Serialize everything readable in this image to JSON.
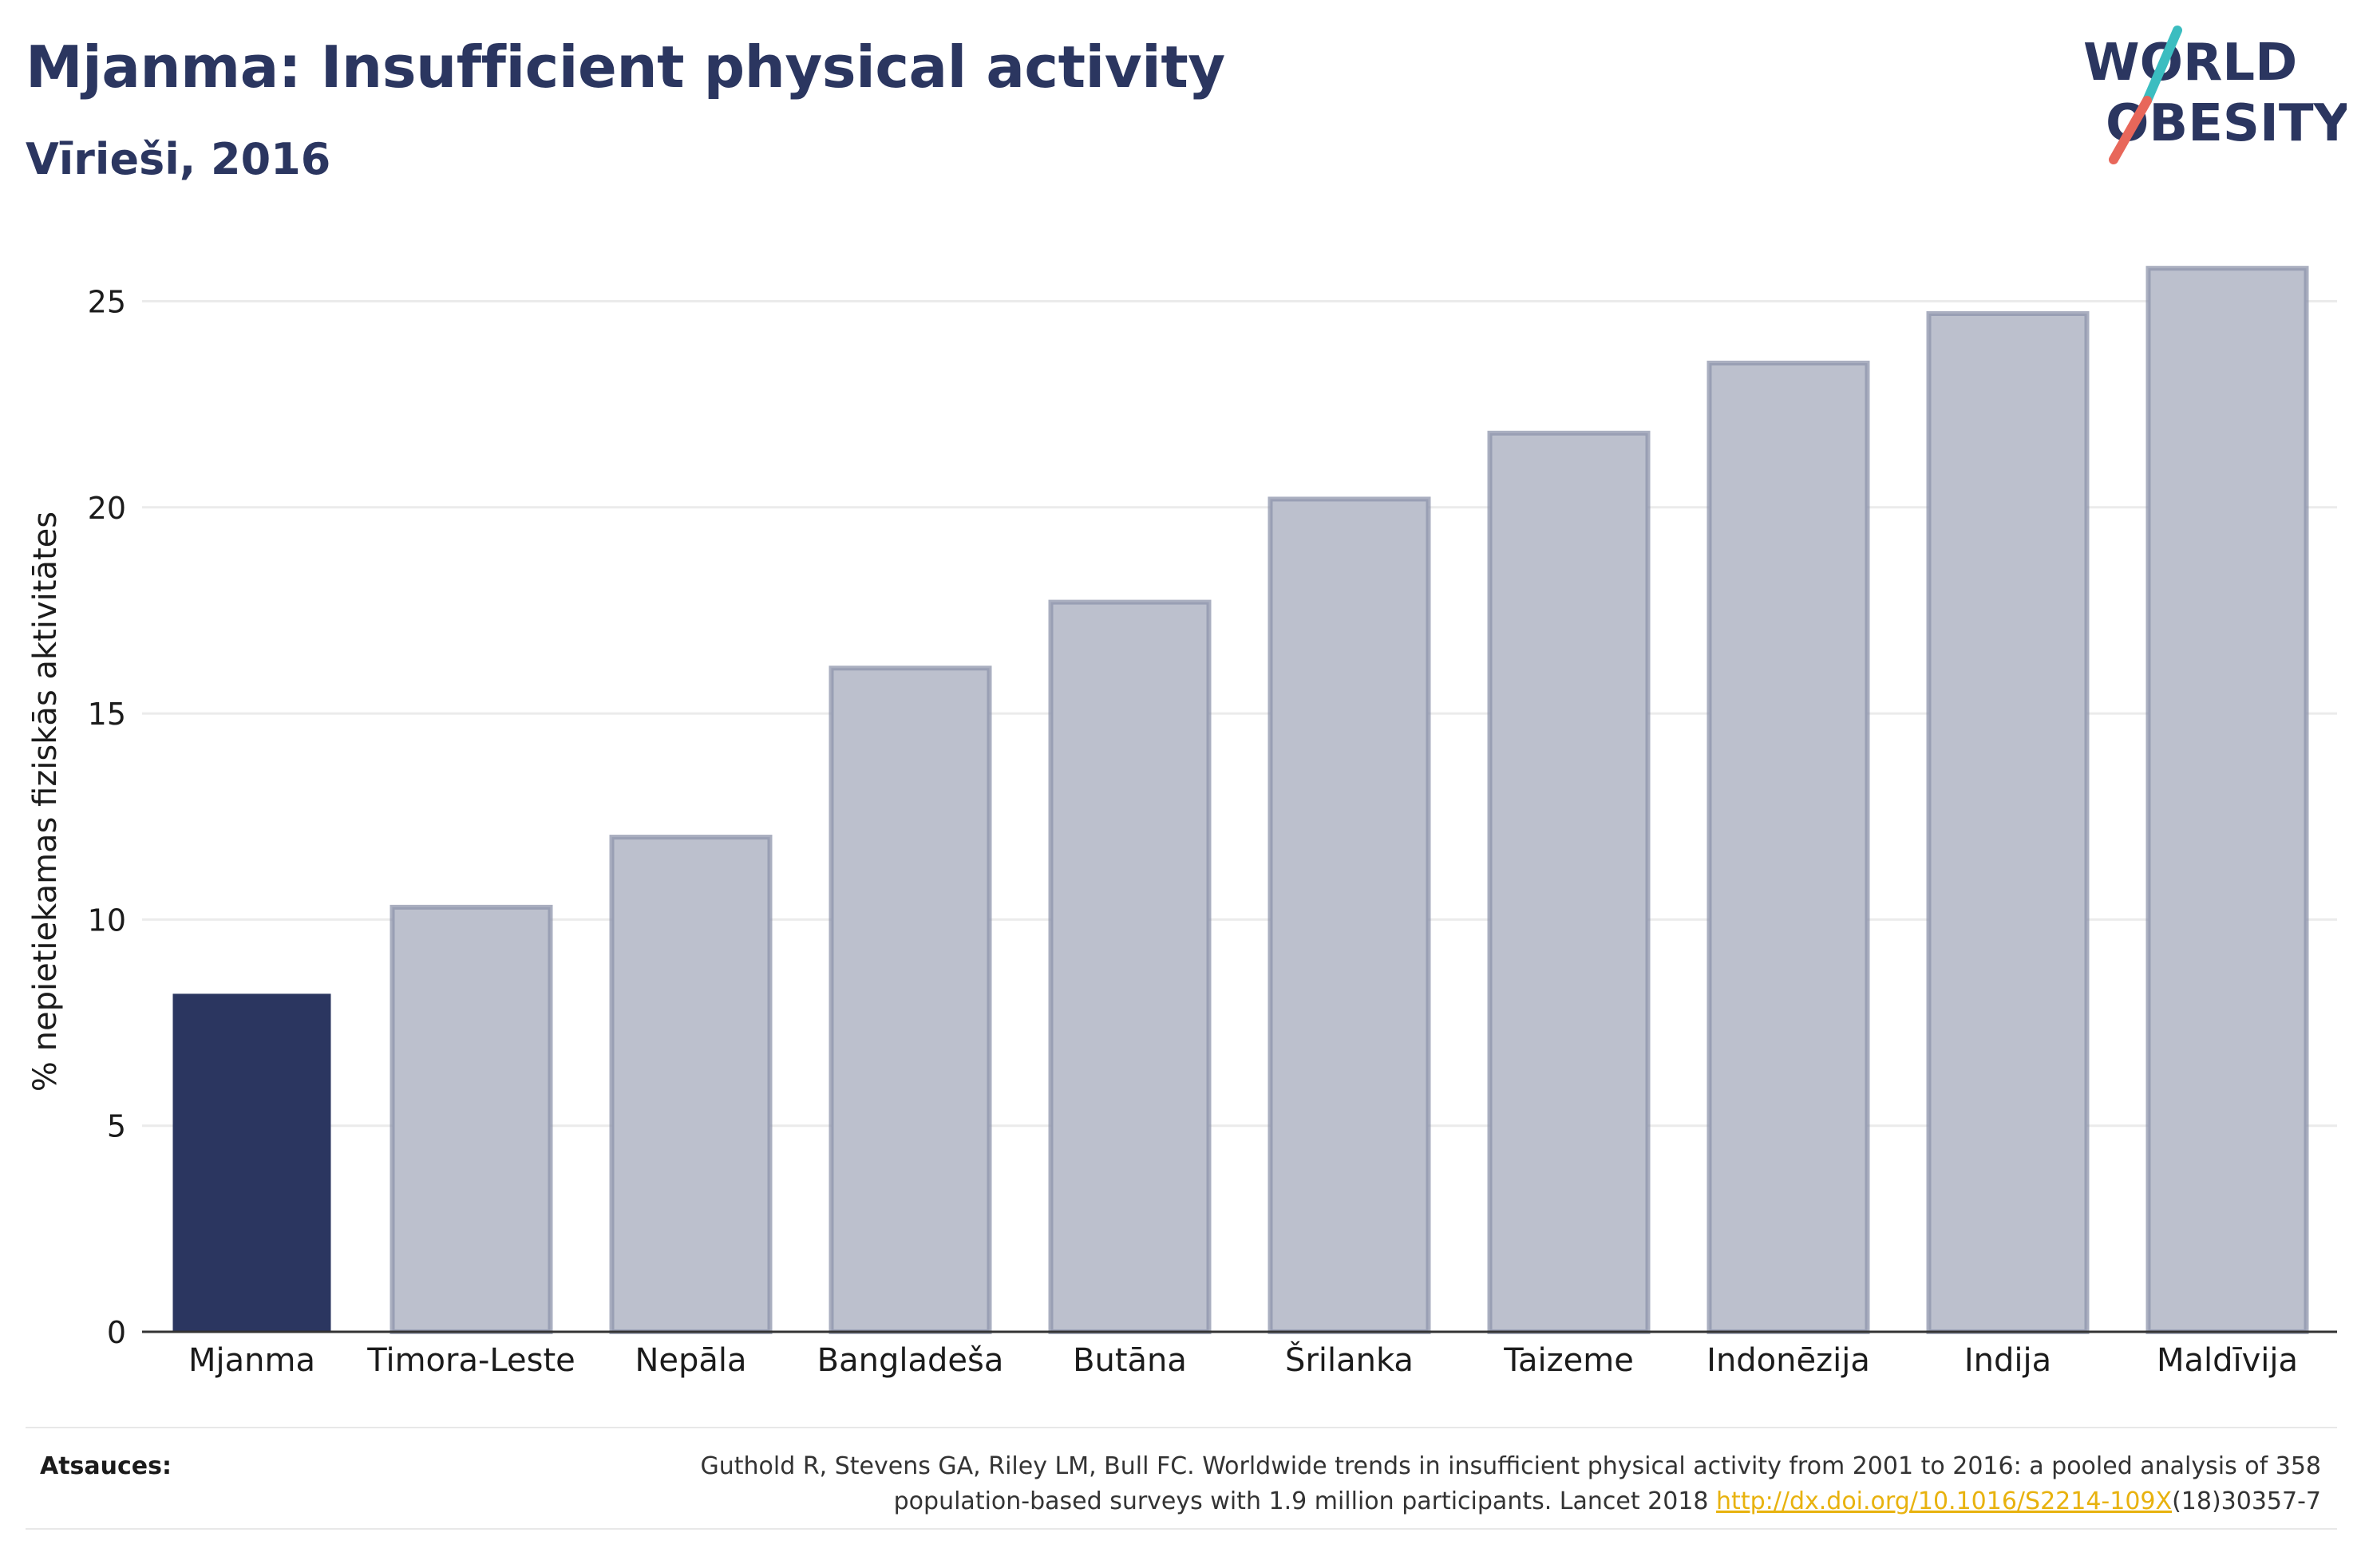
{
  "header": {
    "title": "Mjanma: Insufficient physical activity",
    "subtitle": "Vīrieši, 2016"
  },
  "logo": {
    "line1": "WORLD",
    "line2": "OBESITY",
    "colors": {
      "text": "#2b3660",
      "slash_top": "#3bbdc0",
      "slash_bottom": "#e8675a"
    }
  },
  "chart_data": {
    "type": "bar",
    "categories": [
      "Mjanma",
      "Timora-Leste",
      "Nepāla",
      "Bangladeša",
      "Butāna",
      "Šrilanka",
      "Taizeme",
      "Indonēzija",
      "Indija",
      "Maldīvija"
    ],
    "values": [
      8.2,
      10.3,
      12.0,
      16.1,
      17.7,
      20.2,
      21.8,
      23.5,
      24.7,
      25.8
    ],
    "highlight_index": 0,
    "ylabel": "% nepietiekamas fiziskās aktivitātes",
    "xlabel": "",
    "ylim": [
      0,
      26.5
    ],
    "yticks": [
      0,
      5,
      10,
      15,
      20,
      25
    ],
    "grid": true,
    "colors": {
      "highlight": "#2b3660",
      "bar_fill": "#bcc0cd",
      "bar_stroke": "#8e94ab",
      "grid": "#ebebeb",
      "axis": "#333333"
    }
  },
  "sources": {
    "label": "Atsauces:",
    "text_line1": "Guthold R, Stevens GA, Riley LM, Bull FC. Worldwide trends in insufficient physical activity from 2001 to 2016: a pooled analysis of 358",
    "text_line2_before": "population-based surveys with 1.9 million participants. Lancet 2018 ",
    "link": "http://dx.doi.org/10.1016/S2214-109X",
    "text_line2_after": "(18)30357-7"
  }
}
